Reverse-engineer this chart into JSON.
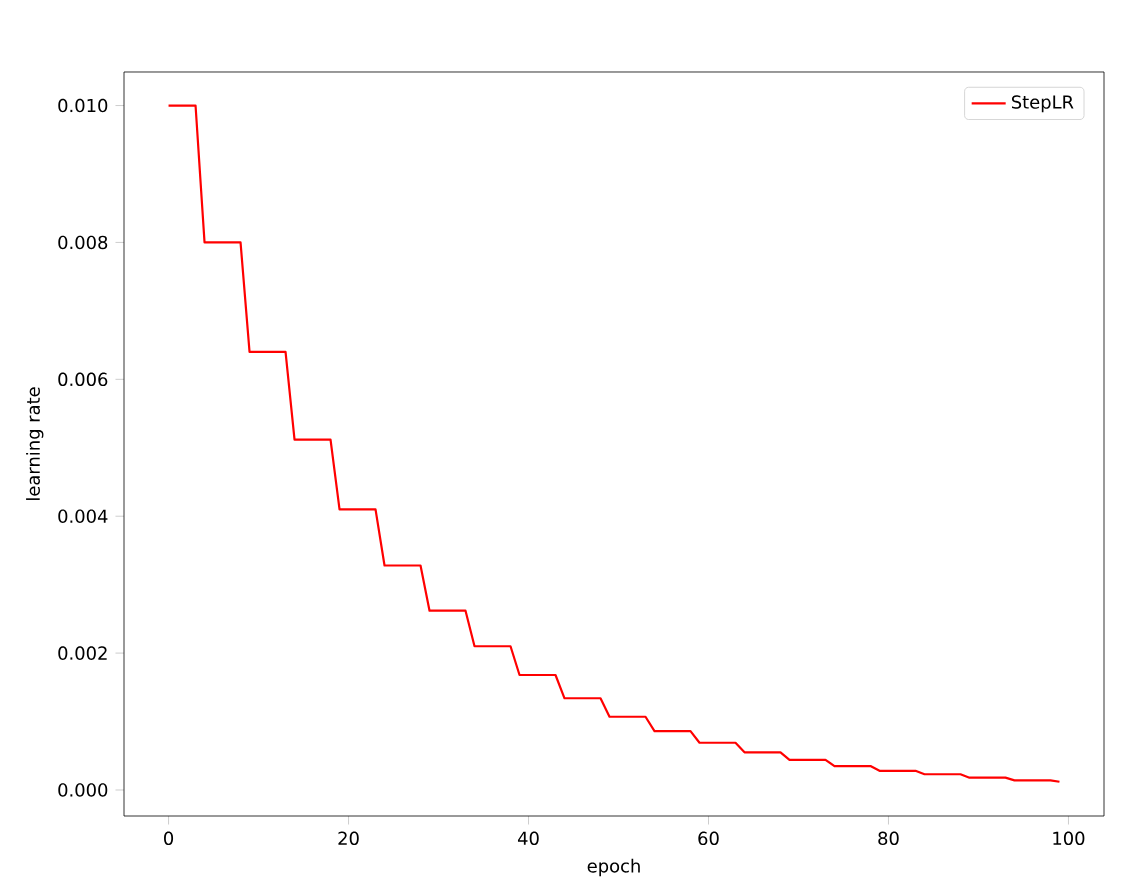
{
  "chart_data": {
    "type": "line",
    "xlabel": "epoch",
    "ylabel": "learning rate",
    "x": [
      0,
      3,
      4,
      8,
      9,
      13,
      14,
      18,
      19,
      23,
      24,
      28,
      29,
      33,
      34,
      38,
      39,
      43,
      44,
      48,
      49,
      53,
      54,
      58,
      59,
      63,
      64,
      68,
      69,
      73,
      74,
      78,
      79,
      83,
      84,
      88,
      89,
      93,
      94,
      98,
      99
    ],
    "series": [
      {
        "name": "StepLR",
        "color": "#ff0000",
        "values": [
          0.01,
          0.01,
          0.008,
          0.008,
          0.0064,
          0.0064,
          0.00512,
          0.00512,
          0.0041,
          0.0041,
          0.00328,
          0.00328,
          0.00262,
          0.00262,
          0.0021,
          0.0021,
          0.00168,
          0.00168,
          0.00134,
          0.00134,
          0.00107,
          0.00107,
          0.00086,
          0.00086,
          0.00069,
          0.00069,
          0.00055,
          0.00055,
          0.00044,
          0.00044,
          0.00035,
          0.00035,
          0.00028,
          0.00028,
          0.00023,
          0.00023,
          0.00018,
          0.00018,
          0.00014,
          0.00014,
          0.00012
        ]
      }
    ],
    "xlim": [
      -4.95,
      103.95
    ],
    "ylim": [
      -0.00038,
      0.01049
    ],
    "xticks": [
      0,
      20,
      40,
      60,
      80,
      100
    ],
    "yticks": [
      {
        "value": 0,
        "label": "0.000"
      },
      {
        "value": 0.002,
        "label": "0.002"
      },
      {
        "value": 0.004,
        "label": "0.004"
      },
      {
        "value": 0.006,
        "label": "0.006"
      },
      {
        "value": 0.008,
        "label": "0.008"
      },
      {
        "value": 0.01,
        "label": "0.010"
      }
    ],
    "legend": "top right",
    "grid": false,
    "marker": "none",
    "line_style": "solid"
  }
}
